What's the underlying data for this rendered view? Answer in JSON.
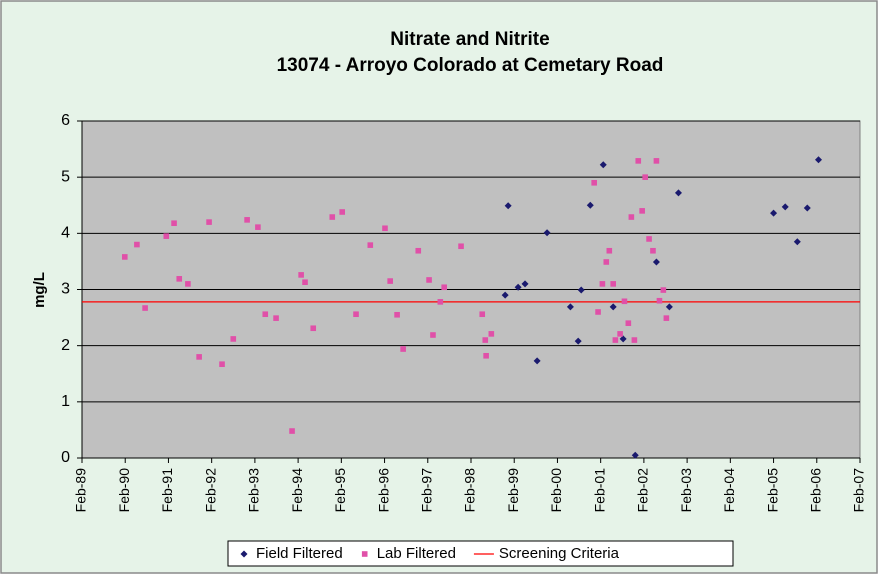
{
  "chart_data": {
    "type": "scatter",
    "title": "Nitrate and Nitrite",
    "subtitle": "13074 - Arroyo Colorado at Cemetary Road",
    "y_label": "mg/L",
    "xlim": [
      1989.08,
      2007.08
    ],
    "xticks": [
      {
        "value": 1989.08,
        "label": "Feb-89"
      },
      {
        "value": 1990.08,
        "label": "Feb-90"
      },
      {
        "value": 1991.08,
        "label": "Feb-91"
      },
      {
        "value": 1992.08,
        "label": "Feb-92"
      },
      {
        "value": 1993.08,
        "label": "Feb-93"
      },
      {
        "value": 1994.08,
        "label": "Feb-94"
      },
      {
        "value": 1995.08,
        "label": "Feb-95"
      },
      {
        "value": 1996.08,
        "label": "Feb-96"
      },
      {
        "value": 1997.08,
        "label": "Feb-97"
      },
      {
        "value": 1998.08,
        "label": "Feb-98"
      },
      {
        "value": 1999.08,
        "label": "Feb-99"
      },
      {
        "value": 2000.08,
        "label": "Feb-00"
      },
      {
        "value": 2001.08,
        "label": "Feb-01"
      },
      {
        "value": 2002.08,
        "label": "Feb-02"
      },
      {
        "value": 2003.08,
        "label": "Feb-03"
      },
      {
        "value": 2004.08,
        "label": "Feb-04"
      },
      {
        "value": 2005.08,
        "label": "Feb-05"
      },
      {
        "value": 2006.08,
        "label": "Feb-06"
      },
      {
        "value": 2007.08,
        "label": "Feb-07"
      }
    ],
    "ylim": [
      0,
      6
    ],
    "yticks": [
      0,
      1,
      2,
      3,
      4,
      5,
      6
    ],
    "grid": true,
    "legend": "bottom",
    "series": [
      {
        "name": "Field Filtered",
        "color": "#1a1a6e",
        "marker": "diamond",
        "x": [
          1998.94,
          1998.87,
          1999.17,
          1999.33,
          1999.61,
          1999.84,
          2000.38,
          2000.56,
          2000.63,
          2000.84,
          2001.14,
          2001.37,
          2001.6,
          2001.88,
          2002.37,
          2002.67,
          2002.88,
          2005.08,
          2005.35,
          2005.63,
          2005.86,
          2006.12
        ],
        "values": [
          4.49,
          2.9,
          3.04,
          3.1,
          1.73,
          4.01,
          2.69,
          2.08,
          2.99,
          4.5,
          5.22,
          2.69,
          2.12,
          0.05,
          3.49,
          2.69,
          4.72,
          4.36,
          4.47,
          3.85,
          4.45,
          5.31
        ]
      },
      {
        "name": "Lab Filtered",
        "color": "#e050a8",
        "marker": "square",
        "x": [
          1990.07,
          1990.35,
          1990.54,
          1991.03,
          1991.21,
          1991.33,
          1991.53,
          1991.79,
          1992.02,
          1992.32,
          1992.58,
          1992.9,
          1993.15,
          1993.32,
          1993.57,
          1993.94,
          1994.15,
          1994.24,
          1994.43,
          1994.87,
          1995.1,
          1995.42,
          1995.75,
          1996.09,
          1996.21,
          1996.37,
          1996.51,
          1996.86,
          1997.11,
          1997.2,
          1997.37,
          1997.46,
          1997.85,
          1998.34,
          1998.41,
          1998.43,
          1998.55,
          2001.02,
          2001.12,
          2001.21,
          2001.28,
          2001.37,
          2001.42,
          2001.53,
          2001.63,
          2001.72,
          2001.79,
          2000.93,
          2001.86,
          2001.95,
          2002.04,
          2002.11,
          2002.2,
          2002.29,
          2002.37,
          2002.44,
          2002.53,
          2002.6
        ],
        "values": [
          3.58,
          3.8,
          2.67,
          3.95,
          4.18,
          3.19,
          3.1,
          1.8,
          4.2,
          1.67,
          2.12,
          4.24,
          4.11,
          2.56,
          2.49,
          0.48,
          3.26,
          3.13,
          2.31,
          4.29,
          4.38,
          2.56,
          3.79,
          4.09,
          3.15,
          2.55,
          1.94,
          3.69,
          3.17,
          2.19,
          2.78,
          3.04,
          3.77,
          2.56,
          2.1,
          1.82,
          2.21,
          2.6,
          3.1,
          3.49,
          3.69,
          3.1,
          2.1,
          2.21,
          2.79,
          2.4,
          4.29,
          4.9,
          2.1,
          5.29,
          4.4,
          5.0,
          3.9,
          3.69,
          5.29,
          2.8,
          2.99,
          2.49
        ]
      }
    ],
    "reference_line": {
      "name": "Screening Criteria",
      "color": "#ff0000",
      "value": 2.78
    }
  }
}
